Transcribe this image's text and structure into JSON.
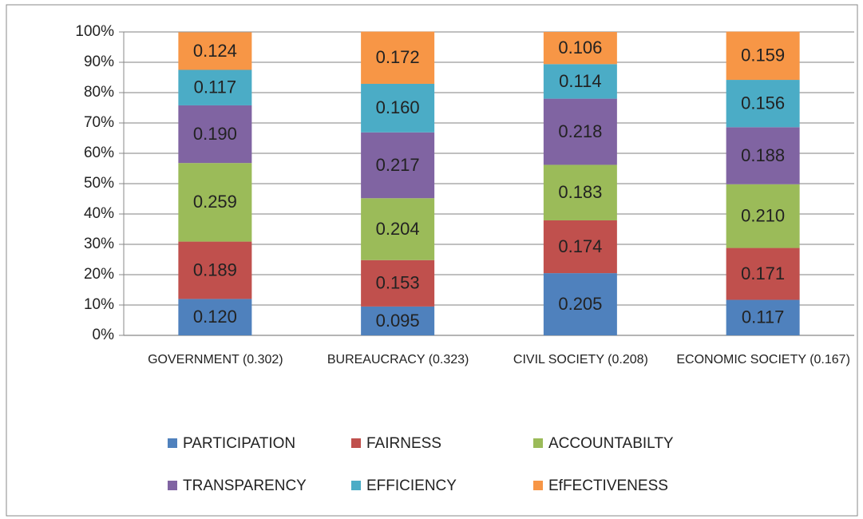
{
  "chart_data": {
    "type": "stacked_bar_100",
    "categories": [
      "GOVERNMENT (0.302)",
      "BUREAUCRACY (0.323)",
      "CIVIL SOCIETY (0.208)",
      "ECONOMIC SOCIETY (0.167)"
    ],
    "series": [
      {
        "name": "PARTICIPATION",
        "color": "#4f81bd",
        "values": [
          12.0,
          9.5,
          20.5,
          11.7
        ],
        "value_labels": [
          "0.120",
          "0.095",
          "0.205",
          "0.117"
        ]
      },
      {
        "name": "FAIRNESS",
        "color": "#c0504d",
        "values": [
          18.9,
          15.3,
          17.4,
          17.1
        ],
        "value_labels": [
          "0.189",
          "0.153",
          "0.174",
          "0.171"
        ]
      },
      {
        "name": "ACCOUNTABILTY",
        "color": "#9bbb59",
        "values": [
          25.9,
          20.4,
          18.3,
          21.0
        ],
        "value_labels": [
          "0.259",
          "0.204",
          "0.183",
          "0.210"
        ]
      },
      {
        "name": "TRANSPARENCY",
        "color": "#8064a2",
        "values": [
          19.0,
          21.7,
          21.8,
          18.8
        ],
        "value_labels": [
          "0.190",
          "0.217",
          "0.218",
          "0.188"
        ]
      },
      {
        "name": "EFFICIENCY",
        "color": "#4bacc6",
        "values": [
          11.7,
          16.0,
          11.4,
          15.6
        ],
        "value_labels": [
          "0.117",
          "0.160",
          "0.114",
          "0.156"
        ]
      },
      {
        "name": "EfFECTIVENESS",
        "color": "#f79646",
        "values": [
          12.4,
          17.2,
          10.6,
          15.9
        ],
        "value_labels": [
          "0.124",
          "0.172",
          "0.106",
          "0.159"
        ]
      }
    ],
    "ylim": [
      0,
      100
    ],
    "yticks": [
      {
        "value": 0,
        "label": "0%"
      },
      {
        "value": 10,
        "label": "10%"
      },
      {
        "value": 20,
        "label": "20%"
      },
      {
        "value": 30,
        "label": "30%"
      },
      {
        "value": 40,
        "label": "40%"
      },
      {
        "value": 50,
        "label": "50%"
      },
      {
        "value": 60,
        "label": "60%"
      },
      {
        "value": 70,
        "label": "70%"
      },
      {
        "value": 80,
        "label": "80%"
      },
      {
        "value": 90,
        "label": "90%"
      },
      {
        "value": 100,
        "label": "100%"
      }
    ],
    "grid": true,
    "legend": "bottom"
  }
}
